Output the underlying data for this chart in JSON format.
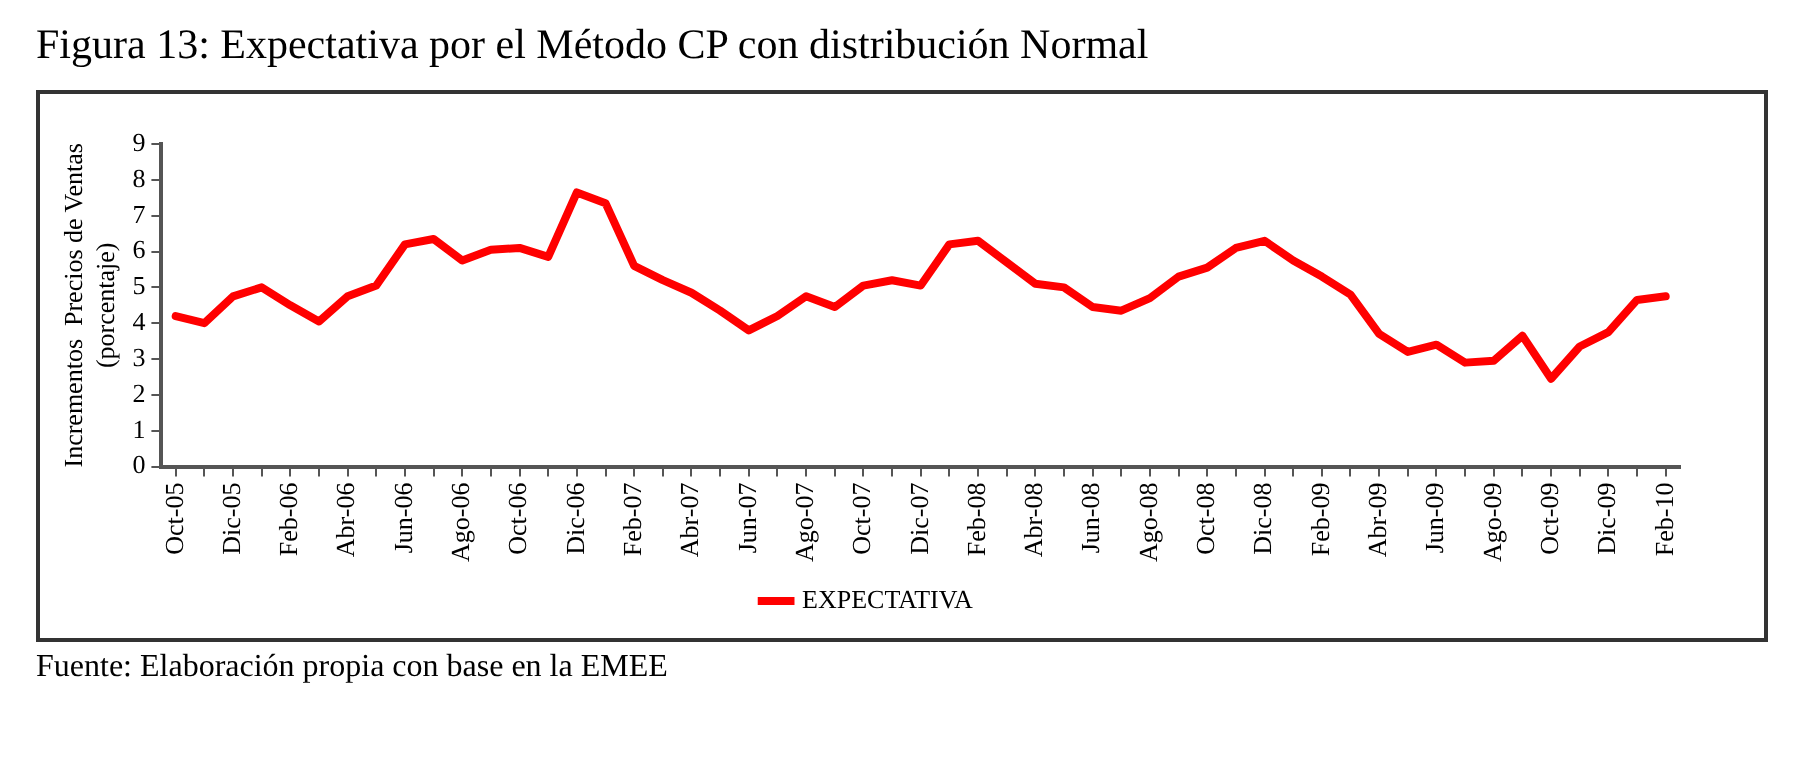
{
  "chart_data": {
    "type": "line",
    "title": "Figura 13: Expectativa por el Método CP con distribución Normal",
    "ylabel": "Incrementos  Precios de Ventas\n(porcentaje)",
    "annotations": [
      "Fuente: Elaboración propia con base en la EMEE"
    ],
    "categories": [
      "Oct-05",
      null,
      "Dic-05",
      null,
      "Feb-06",
      null,
      "Abr-06",
      null,
      "Jun-06",
      null,
      "Ago-06",
      null,
      "Oct-06",
      null,
      "Dic-06",
      null,
      "Feb-07",
      null,
      "Abr-07",
      null,
      "Jun-07",
      null,
      "Ago-07",
      null,
      "Oct-07",
      null,
      "Dic-07",
      null,
      "Feb-08",
      null,
      "Abr-08",
      null,
      "Jun-08",
      null,
      "Ago-08",
      null,
      "Oct-08",
      null,
      "Dic-08",
      null,
      "Feb-09",
      null,
      "Abr-09",
      null,
      "Jun-09",
      null,
      "Ago-09",
      null,
      "Oct-09",
      null,
      "Dic-09",
      null,
      "Feb-10"
    ],
    "series": [
      {
        "name": "EXPECTATIVA",
        "color": "#ff0000",
        "values": [
          4.2,
          4.0,
          4.75,
          5.0,
          4.5,
          4.05,
          4.75,
          5.05,
          6.2,
          6.35,
          5.75,
          6.05,
          6.1,
          5.85,
          7.65,
          7.35,
          5.6,
          5.2,
          4.85,
          4.35,
          3.8,
          4.2,
          4.75,
          4.45,
          5.05,
          5.2,
          5.05,
          6.2,
          6.3,
          5.7,
          5.1,
          5.0,
          4.45,
          4.35,
          4.7,
          5.3,
          5.55,
          6.1,
          6.3,
          5.75,
          5.3,
          4.8,
          3.7,
          3.2,
          3.4,
          2.9,
          2.95,
          3.65,
          2.45,
          3.35,
          3.75,
          4.65,
          4.75
        ]
      }
    ],
    "ylim": [
      0,
      9
    ],
    "yticks": [
      0,
      1,
      2,
      3,
      4,
      5,
      6,
      7,
      8,
      9
    ],
    "grid": false,
    "legend": "bottom",
    "marker": "none",
    "line_style": "solid"
  }
}
